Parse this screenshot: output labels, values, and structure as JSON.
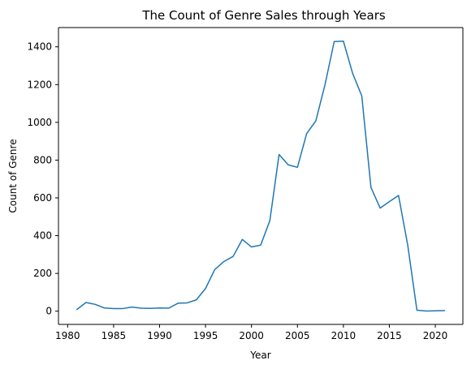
{
  "chart_data": {
    "type": "line",
    "title": "The Count of Genre Sales through Years",
    "xlabel": "Year",
    "ylabel": "Count of Genre",
    "xlim": [
      1979,
      2023
    ],
    "ylim": [
      -70,
      1502
    ],
    "xticks": [
      1980,
      1985,
      1990,
      1995,
      2000,
      2005,
      2010,
      2015,
      2020
    ],
    "yticks": [
      0,
      200,
      400,
      600,
      800,
      1000,
      1200,
      1400
    ],
    "grid": false,
    "legend": "none",
    "line_color": "#1f77b4",
    "series": [
      {
        "x": [
          1981,
          1982,
          1983,
          1984,
          1985,
          1986,
          1987,
          1988,
          1989,
          1990,
          1991,
          1992,
          1993,
          1994,
          1995,
          1996,
          1997,
          1998,
          1999,
          2000,
          2001,
          2002,
          2003,
          2004,
          2005,
          2006,
          2007,
          2008,
          2009,
          2010,
          2011,
          2012,
          2013,
          2014,
          2015,
          2016,
          2017,
          2018,
          2019,
          2020,
          2021
        ],
        "values": [
          9,
          46,
          36,
          17,
          14,
          14,
          22,
          16,
          15,
          17,
          16,
          42,
          44,
          60,
          120,
          220,
          263,
          290,
          380,
          340,
          350,
          480,
          830,
          775,
          762,
          940,
          1008,
          1200,
          1428,
          1430,
          1260,
          1140,
          655,
          546,
          580,
          613,
          350,
          5,
          1,
          2,
          3
        ]
      }
    ]
  }
}
